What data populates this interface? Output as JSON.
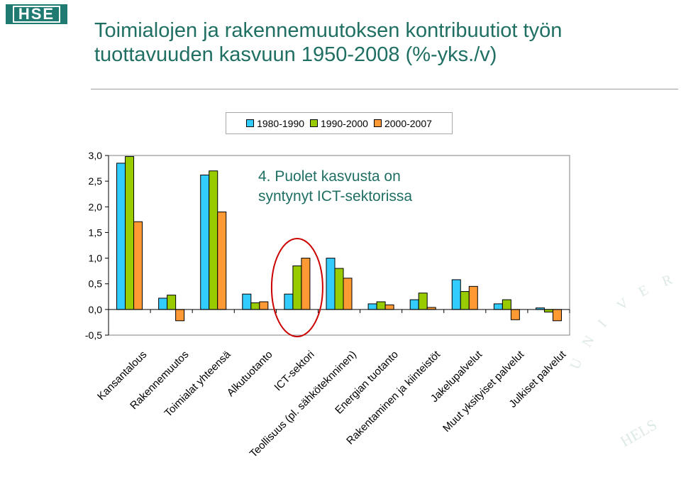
{
  "logo": {
    "text": "HSE"
  },
  "slide": {
    "title": "Toimialojen ja rakennemuutoksen kontribuutiot työn tuottavuuden kasvuun 1950-2008 (%-yks./v)"
  },
  "watermark": {
    "text": "UNIVERSITAS HELSINGIENSIS",
    "color": "#dde9e5"
  },
  "chart_data": {
    "type": "bar",
    "title": "",
    "xlabel": "",
    "ylabel": "",
    "ylim": [
      -0.5,
      3.0
    ],
    "yticks": [
      -0.5,
      0.0,
      0.5,
      1.0,
      1.5,
      2.0,
      2.5,
      3.0
    ],
    "ytick_labels": [
      "-0,5",
      "0,0",
      "0,5",
      "1,0",
      "1,5",
      "2,0",
      "2,5",
      "3,0"
    ],
    "grid": false,
    "legend_position": "top",
    "categories": [
      "Kansantalous",
      "Rakennemuutos",
      "Toimialat yhteensä",
      "Alkutuotanto",
      "ICT-sektori",
      "Teollisuus (pl. sähköteknninen)",
      "Energian tuotanto",
      "Rakentaminen ja kiinteistöt",
      "Jakelupalvelut",
      "Muut yksityiset palvelut",
      "Julkiset palvelut"
    ],
    "series": [
      {
        "name": "1980-1990",
        "color": "#33ccff",
        "values": [
          2.85,
          0.22,
          2.62,
          0.3,
          0.3,
          1.0,
          0.11,
          0.19,
          0.58,
          0.11,
          0.03
        ]
      },
      {
        "name": "1990-2000",
        "color": "#99cc00",
        "values": [
          2.98,
          0.28,
          2.7,
          0.13,
          0.85,
          0.8,
          0.15,
          0.32,
          0.35,
          0.19,
          -0.05
        ]
      },
      {
        "name": "2000-2007",
        "color": "#ff9933",
        "values": [
          1.71,
          -0.22,
          1.9,
          0.15,
          1.0,
          0.61,
          0.09,
          0.04,
          0.45,
          -0.2,
          -0.22
        ]
      }
    ],
    "annotation": "4. Puolet kasvusta on syntynyt ICT-sektorissa",
    "highlight": {
      "category": "ICT-sektori",
      "shape": "ellipse",
      "color": "#cc0000"
    }
  }
}
